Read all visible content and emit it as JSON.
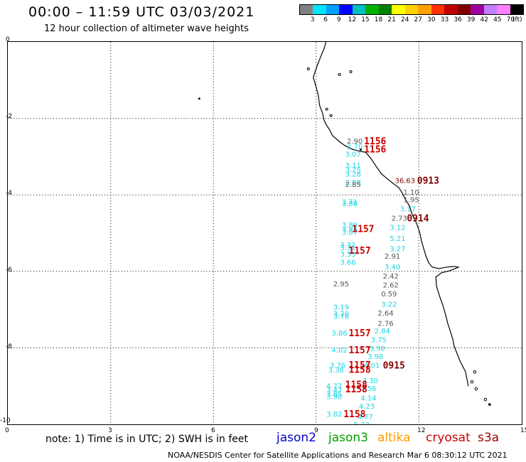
{
  "header": {
    "title": "00:00 – 11:59 UTC 03/03/2021",
    "subtitle": "12 hour collection of altimeter wave heights"
  },
  "colorscale": {
    "colors": [
      "#808080",
      "#00e5ff",
      "#00a0ff",
      "#0000ff",
      "#00c0c0",
      "#00b000",
      "#008000",
      "#ffff00",
      "#ffd000",
      "#ffa000",
      "#ff3000",
      "#c00000",
      "#800000",
      "#a000a0",
      "#c080ff",
      "#ff80ff",
      "#000000"
    ],
    "labels": [
      "3",
      "6",
      "9",
      "12",
      "15",
      "18",
      "21",
      "24",
      "27",
      "30",
      "33",
      "36",
      "39",
      "42",
      "45",
      "70",
      "(ft)"
    ]
  },
  "axes": {
    "x_labels": [
      "0",
      "3",
      "6",
      "9",
      "12",
      "15"
    ],
    "y_labels": [
      "0",
      "-2",
      "-4",
      "-6",
      "-8",
      "-10"
    ],
    "x_range": [
      0,
      15
    ],
    "y_range": [
      -10,
      0
    ]
  },
  "colors": {
    "jason2": "#0000cc",
    "jason3": "#00a000",
    "altika": "#ff9900",
    "cryosat": "#cc0000",
    "s3a": "#990000",
    "obs_cyan": "#19d4e6",
    "obs_gray": "#555555"
  },
  "observations": [
    {
      "lon": 9.9,
      "lat": -2.58,
      "text": "2.90",
      "color": "#555555"
    },
    {
      "lon": 9.9,
      "lat": -2.72,
      "text": "2.70",
      "color": "#19d4e6"
    },
    {
      "lon": 9.85,
      "lat": -2.93,
      "text": "3.07",
      "color": "#19d4e6"
    },
    {
      "lon": 9.85,
      "lat": -3.22,
      "text": "3.11",
      "color": "#19d4e6"
    },
    {
      "lon": 9.85,
      "lat": -3.34,
      "text": "3.25",
      "color": "#19d4e6"
    },
    {
      "lon": 9.85,
      "lat": -3.45,
      "text": "3.28",
      "color": "#19d4e6"
    },
    {
      "lon": 9.85,
      "lat": -3.66,
      "text": "2.88",
      "color": "#19d4e6"
    },
    {
      "lon": 9.85,
      "lat": -3.72,
      "text": "2.85",
      "color": "#555555"
    },
    {
      "lon": 11.3,
      "lat": -3.62,
      "text": "36.63",
      "color": "#800000"
    },
    {
      "lon": 11.55,
      "lat": -3.92,
      "text": "1.10",
      "color": "#555555"
    },
    {
      "lon": 11.55,
      "lat": -4.12,
      "text": "1.95",
      "color": "#555555"
    },
    {
      "lon": 11.45,
      "lat": -4.36,
      "text": "3.17",
      "color": "#19d4e6"
    },
    {
      "lon": 11.2,
      "lat": -4.6,
      "text": "2.73",
      "color": "#555555"
    },
    {
      "lon": 11.15,
      "lat": -4.84,
      "text": "3.12",
      "color": "#19d4e6"
    },
    {
      "lon": 11.15,
      "lat": -5.13,
      "text": "5.21",
      "color": "#19d4e6"
    },
    {
      "lon": 11.15,
      "lat": -5.4,
      "text": "3.27",
      "color": "#19d4e6"
    },
    {
      "lon": 11.0,
      "lat": -5.6,
      "text": "2.91",
      "color": "#555555"
    },
    {
      "lon": 11.0,
      "lat": -5.87,
      "text": "3.40",
      "color": "#19d4e6"
    },
    {
      "lon": 10.95,
      "lat": -6.12,
      "text": "2.42",
      "color": "#555555"
    },
    {
      "lon": 10.95,
      "lat": -6.35,
      "text": "2.62",
      "color": "#555555"
    },
    {
      "lon": 10.9,
      "lat": -6.58,
      "text": "0.59",
      "color": "#555555"
    },
    {
      "lon": 10.9,
      "lat": -6.85,
      "text": "3.22",
      "color": "#19d4e6"
    },
    {
      "lon": 10.8,
      "lat": -7.08,
      "text": "2.64",
      "color": "#555555"
    },
    {
      "lon": 10.8,
      "lat": -7.35,
      "text": "2.76",
      "color": "#555555"
    },
    {
      "lon": 10.7,
      "lat": -7.55,
      "text": "2.84",
      "color": "#19d4e6"
    },
    {
      "lon": 10.6,
      "lat": -7.78,
      "text": "3.75",
      "color": "#19d4e6"
    },
    {
      "lon": 10.55,
      "lat": -8.0,
      "text": "3.30",
      "color": "#19d4e6"
    },
    {
      "lon": 10.5,
      "lat": -8.22,
      "text": "3.98",
      "color": "#19d4e6"
    },
    {
      "lon": 10.4,
      "lat": -8.45,
      "text": "4.01",
      "color": "#19d4e6"
    },
    {
      "lon": 10.35,
      "lat": -8.85,
      "text": "3.30",
      "color": "#19d4e6"
    },
    {
      "lon": 10.3,
      "lat": -9.05,
      "text": "3.56",
      "color": "#19d4e6"
    },
    {
      "lon": 10.3,
      "lat": -9.3,
      "text": "4.14",
      "color": "#19d4e6"
    },
    {
      "lon": 10.25,
      "lat": -9.52,
      "text": "4.23",
      "color": "#19d4e6"
    },
    {
      "lon": 10.2,
      "lat": -9.8,
      "text": "4.77",
      "color": "#19d4e6"
    },
    {
      "lon": 10.1,
      "lat": -10.0,
      "text": "5.33",
      "color": "#19d4e6"
    },
    {
      "lon": 9.75,
      "lat": -4.17,
      "text": "3.71",
      "color": "#19d4e6"
    },
    {
      "lon": 9.75,
      "lat": -4.22,
      "text": "3.88",
      "color": "#19d4e6"
    },
    {
      "lon": 9.75,
      "lat": -4.78,
      "text": "3.89",
      "color": "#19d4e6"
    },
    {
      "lon": 9.75,
      "lat": -4.9,
      "text": "3.85",
      "color": "#19d4e6"
    },
    {
      "lon": 9.75,
      "lat": -4.96,
      "text": "3.87",
      "color": "#19d4e6"
    },
    {
      "lon": 9.7,
      "lat": -5.3,
      "text": "3.32",
      "color": "#19d4e6"
    },
    {
      "lon": 9.7,
      "lat": -5.37,
      "text": "3.31",
      "color": "#19d4e6"
    },
    {
      "lon": 9.7,
      "lat": -5.54,
      "text": "3.53",
      "color": "#19d4e6"
    },
    {
      "lon": 9.7,
      "lat": -5.75,
      "text": "3.66",
      "color": "#19d4e6"
    },
    {
      "lon": 9.5,
      "lat": -6.32,
      "text": "2.95",
      "color": "#555555"
    },
    {
      "lon": 9.5,
      "lat": -6.92,
      "text": "3.19",
      "color": "#19d4e6"
    },
    {
      "lon": 9.5,
      "lat": -7.1,
      "text": "3.79",
      "color": "#19d4e6"
    },
    {
      "lon": 9.5,
      "lat": -7.17,
      "text": "3.78",
      "color": "#19d4e6"
    },
    {
      "lon": 9.45,
      "lat": -7.6,
      "text": "3.86",
      "color": "#19d4e6"
    },
    {
      "lon": 9.45,
      "lat": -8.05,
      "text": "4.02",
      "color": "#19d4e6"
    },
    {
      "lon": 9.4,
      "lat": -8.45,
      "text": "3.76",
      "color": "#19d4e6"
    },
    {
      "lon": 9.35,
      "lat": -8.57,
      "text": "3.38",
      "color": "#19d4e6"
    },
    {
      "lon": 9.3,
      "lat": -8.99,
      "text": "4.77",
      "color": "#19d4e6"
    },
    {
      "lon": 9.3,
      "lat": -9.09,
      "text": "3.47",
      "color": "#19d4e6"
    },
    {
      "lon": 9.3,
      "lat": -9.19,
      "text": "3.85",
      "color": "#19d4e6"
    },
    {
      "lon": 9.3,
      "lat": -9.27,
      "text": "3.90",
      "color": "#19d4e6"
    },
    {
      "lon": 9.3,
      "lat": -9.72,
      "text": "3.82",
      "color": "#19d4e6"
    },
    {
      "lon": 9.1,
      "lat": -10.08,
      "text": "4.47",
      "color": "#19d4e6"
    },
    {
      "lon": 9.1,
      "lat": -10.16,
      "text": "4.56",
      "color": "#19d4e6"
    }
  ],
  "times": [
    {
      "lon": 10.4,
      "lat": -2.58,
      "text": "1156",
      "color": "#cc0000"
    },
    {
      "lon": 10.4,
      "lat": -2.8,
      "text": "1156",
      "color": "#cc0000"
    },
    {
      "lon": 11.95,
      "lat": -3.62,
      "text": "0913",
      "color": "#800000"
    },
    {
      "lon": 11.65,
      "lat": -4.6,
      "text": "0914",
      "color": "#800000"
    },
    {
      "lon": 10.05,
      "lat": -4.88,
      "text": "1157",
      "color": "#cc0000"
    },
    {
      "lon": 9.95,
      "lat": -5.45,
      "text": "1157",
      "color": "#cc0000"
    },
    {
      "lon": 9.95,
      "lat": -7.6,
      "text": "1157",
      "color": "#cc0000"
    },
    {
      "lon": 9.95,
      "lat": -8.05,
      "text": "1157",
      "color": "#cc0000"
    },
    {
      "lon": 9.95,
      "lat": -8.44,
      "text": "1157",
      "color": "#cc0000"
    },
    {
      "lon": 9.95,
      "lat": -8.56,
      "text": "1158",
      "color": "#cc0000"
    },
    {
      "lon": 9.85,
      "lat": -8.95,
      "text": "1158",
      "color": "#cc0000"
    },
    {
      "lon": 9.85,
      "lat": -9.07,
      "text": "1158",
      "color": "#cc0000"
    },
    {
      "lon": 9.8,
      "lat": -9.72,
      "text": "1158",
      "color": "#cc0000"
    },
    {
      "lon": 9.75,
      "lat": -10.16,
      "text": "1158",
      "color": "#cc0000"
    },
    {
      "lon": 10.95,
      "lat": -8.45,
      "text": "0915",
      "color": "#800000"
    }
  ],
  "note": "note:  1) Time is in UTC;  2) SWH is in feet",
  "satellites": [
    {
      "name": "jason2",
      "color": "#0000cc"
    },
    {
      "name": "jason3",
      "color": "#00a000"
    },
    {
      "name": "altika",
      "color": "#ff9900"
    },
    {
      "name": "cryosat",
      "color": "#cc0000"
    },
    {
      "name": "s3a",
      "color": "#990000"
    }
  ],
  "footer": "NOAA/NESDIS Center for Satellite Applications and Research    Mar  6 08:30:12 UTC 2021"
}
